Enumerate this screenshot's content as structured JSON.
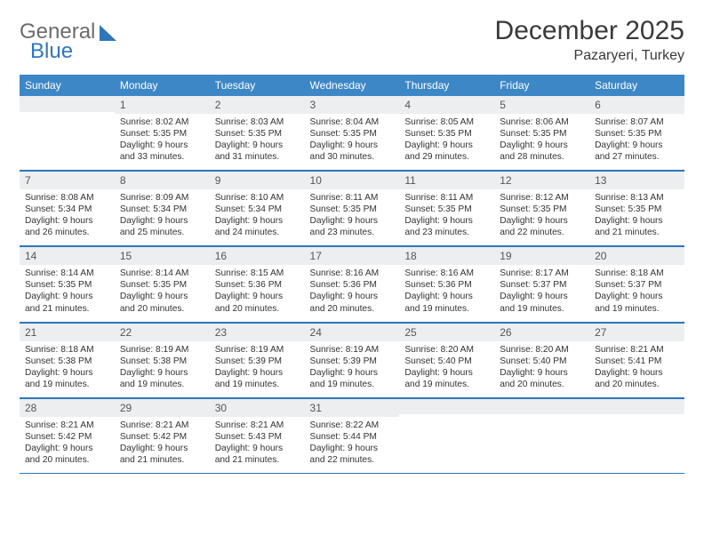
{
  "logo": {
    "text1": "General",
    "text2": "Blue",
    "sail_color": "#2f76bb"
  },
  "title": {
    "month": "December 2025",
    "location": "Pazaryeri, Turkey"
  },
  "weekdays": [
    "Sunday",
    "Monday",
    "Tuesday",
    "Wednesday",
    "Thursday",
    "Friday",
    "Saturday"
  ],
  "colors": {
    "header_bg": "#3d87c7",
    "header_text": "#ffffff",
    "daynum_bg": "#eceeef",
    "rule": "#2f76bb",
    "text": "#333333"
  },
  "weeks": [
    [
      {
        "n": "",
        "sunrise": "",
        "sunset": "",
        "daylight": ""
      },
      {
        "n": "1",
        "sunrise": "Sunrise: 8:02 AM",
        "sunset": "Sunset: 5:35 PM",
        "daylight": "Daylight: 9 hours and 33 minutes."
      },
      {
        "n": "2",
        "sunrise": "Sunrise: 8:03 AM",
        "sunset": "Sunset: 5:35 PM",
        "daylight": "Daylight: 9 hours and 31 minutes."
      },
      {
        "n": "3",
        "sunrise": "Sunrise: 8:04 AM",
        "sunset": "Sunset: 5:35 PM",
        "daylight": "Daylight: 9 hours and 30 minutes."
      },
      {
        "n": "4",
        "sunrise": "Sunrise: 8:05 AM",
        "sunset": "Sunset: 5:35 PM",
        "daylight": "Daylight: 9 hours and 29 minutes."
      },
      {
        "n": "5",
        "sunrise": "Sunrise: 8:06 AM",
        "sunset": "Sunset: 5:35 PM",
        "daylight": "Daylight: 9 hours and 28 minutes."
      },
      {
        "n": "6",
        "sunrise": "Sunrise: 8:07 AM",
        "sunset": "Sunset: 5:35 PM",
        "daylight": "Daylight: 9 hours and 27 minutes."
      }
    ],
    [
      {
        "n": "7",
        "sunrise": "Sunrise: 8:08 AM",
        "sunset": "Sunset: 5:34 PM",
        "daylight": "Daylight: 9 hours and 26 minutes."
      },
      {
        "n": "8",
        "sunrise": "Sunrise: 8:09 AM",
        "sunset": "Sunset: 5:34 PM",
        "daylight": "Daylight: 9 hours and 25 minutes."
      },
      {
        "n": "9",
        "sunrise": "Sunrise: 8:10 AM",
        "sunset": "Sunset: 5:34 PM",
        "daylight": "Daylight: 9 hours and 24 minutes."
      },
      {
        "n": "10",
        "sunrise": "Sunrise: 8:11 AM",
        "sunset": "Sunset: 5:35 PM",
        "daylight": "Daylight: 9 hours and 23 minutes."
      },
      {
        "n": "11",
        "sunrise": "Sunrise: 8:11 AM",
        "sunset": "Sunset: 5:35 PM",
        "daylight": "Daylight: 9 hours and 23 minutes."
      },
      {
        "n": "12",
        "sunrise": "Sunrise: 8:12 AM",
        "sunset": "Sunset: 5:35 PM",
        "daylight": "Daylight: 9 hours and 22 minutes."
      },
      {
        "n": "13",
        "sunrise": "Sunrise: 8:13 AM",
        "sunset": "Sunset: 5:35 PM",
        "daylight": "Daylight: 9 hours and 21 minutes."
      }
    ],
    [
      {
        "n": "14",
        "sunrise": "Sunrise: 8:14 AM",
        "sunset": "Sunset: 5:35 PM",
        "daylight": "Daylight: 9 hours and 21 minutes."
      },
      {
        "n": "15",
        "sunrise": "Sunrise: 8:14 AM",
        "sunset": "Sunset: 5:35 PM",
        "daylight": "Daylight: 9 hours and 20 minutes."
      },
      {
        "n": "16",
        "sunrise": "Sunrise: 8:15 AM",
        "sunset": "Sunset: 5:36 PM",
        "daylight": "Daylight: 9 hours and 20 minutes."
      },
      {
        "n": "17",
        "sunrise": "Sunrise: 8:16 AM",
        "sunset": "Sunset: 5:36 PM",
        "daylight": "Daylight: 9 hours and 20 minutes."
      },
      {
        "n": "18",
        "sunrise": "Sunrise: 8:16 AM",
        "sunset": "Sunset: 5:36 PM",
        "daylight": "Daylight: 9 hours and 19 minutes."
      },
      {
        "n": "19",
        "sunrise": "Sunrise: 8:17 AM",
        "sunset": "Sunset: 5:37 PM",
        "daylight": "Daylight: 9 hours and 19 minutes."
      },
      {
        "n": "20",
        "sunrise": "Sunrise: 8:18 AM",
        "sunset": "Sunset: 5:37 PM",
        "daylight": "Daylight: 9 hours and 19 minutes."
      }
    ],
    [
      {
        "n": "21",
        "sunrise": "Sunrise: 8:18 AM",
        "sunset": "Sunset: 5:38 PM",
        "daylight": "Daylight: 9 hours and 19 minutes."
      },
      {
        "n": "22",
        "sunrise": "Sunrise: 8:19 AM",
        "sunset": "Sunset: 5:38 PM",
        "daylight": "Daylight: 9 hours and 19 minutes."
      },
      {
        "n": "23",
        "sunrise": "Sunrise: 8:19 AM",
        "sunset": "Sunset: 5:39 PM",
        "daylight": "Daylight: 9 hours and 19 minutes."
      },
      {
        "n": "24",
        "sunrise": "Sunrise: 8:19 AM",
        "sunset": "Sunset: 5:39 PM",
        "daylight": "Daylight: 9 hours and 19 minutes."
      },
      {
        "n": "25",
        "sunrise": "Sunrise: 8:20 AM",
        "sunset": "Sunset: 5:40 PM",
        "daylight": "Daylight: 9 hours and 19 minutes."
      },
      {
        "n": "26",
        "sunrise": "Sunrise: 8:20 AM",
        "sunset": "Sunset: 5:40 PM",
        "daylight": "Daylight: 9 hours and 20 minutes."
      },
      {
        "n": "27",
        "sunrise": "Sunrise: 8:21 AM",
        "sunset": "Sunset: 5:41 PM",
        "daylight": "Daylight: 9 hours and 20 minutes."
      }
    ],
    [
      {
        "n": "28",
        "sunrise": "Sunrise: 8:21 AM",
        "sunset": "Sunset: 5:42 PM",
        "daylight": "Daylight: 9 hours and 20 minutes."
      },
      {
        "n": "29",
        "sunrise": "Sunrise: 8:21 AM",
        "sunset": "Sunset: 5:42 PM",
        "daylight": "Daylight: 9 hours and 21 minutes."
      },
      {
        "n": "30",
        "sunrise": "Sunrise: 8:21 AM",
        "sunset": "Sunset: 5:43 PM",
        "daylight": "Daylight: 9 hours and 21 minutes."
      },
      {
        "n": "31",
        "sunrise": "Sunrise: 8:22 AM",
        "sunset": "Sunset: 5:44 PM",
        "daylight": "Daylight: 9 hours and 22 minutes."
      },
      {
        "n": "",
        "sunrise": "",
        "sunset": "",
        "daylight": ""
      },
      {
        "n": "",
        "sunrise": "",
        "sunset": "",
        "daylight": ""
      },
      {
        "n": "",
        "sunrise": "",
        "sunset": "",
        "daylight": ""
      }
    ]
  ]
}
